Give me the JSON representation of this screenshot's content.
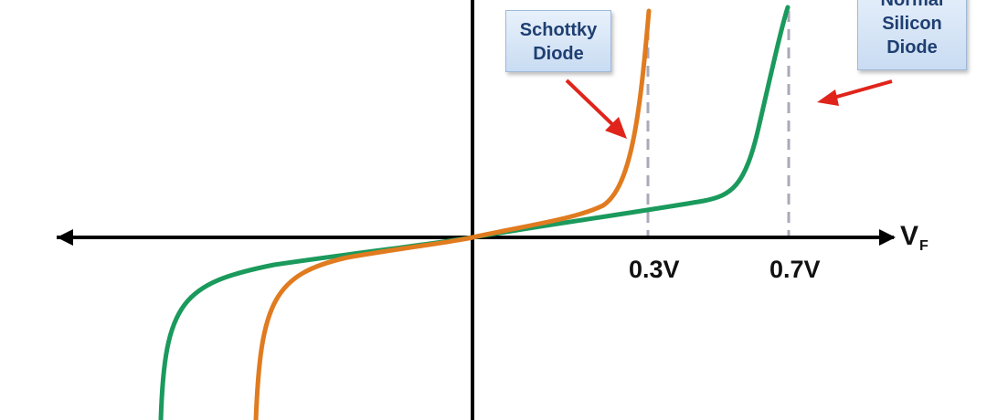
{
  "chart_data": {
    "type": "line",
    "x_axis_label": "V",
    "x_axis_label_subscript": "F",
    "tick_labels": [
      "0.3V",
      "0.7V"
    ],
    "tick_values": [
      0.3,
      0.7
    ],
    "series": [
      {
        "name": "Schottky Diode",
        "color": "#e07b1f",
        "knee_voltage": 0.3
      },
      {
        "name": "Normal Silicon Diode",
        "color": "#1a9a5c",
        "knee_voltage": 0.7
      }
    ],
    "grid": false
  },
  "callouts": {
    "schottky": {
      "line1": "Schottky",
      "line2": "Diode"
    },
    "silicon": {
      "line1": "Normal",
      "line2": "Silicon",
      "line3": "Diode"
    }
  },
  "colors": {
    "axis": "#000000",
    "arrow": "#e0241b",
    "dashed": "#a9a9b8",
    "callout_text": "#1f3f72"
  }
}
